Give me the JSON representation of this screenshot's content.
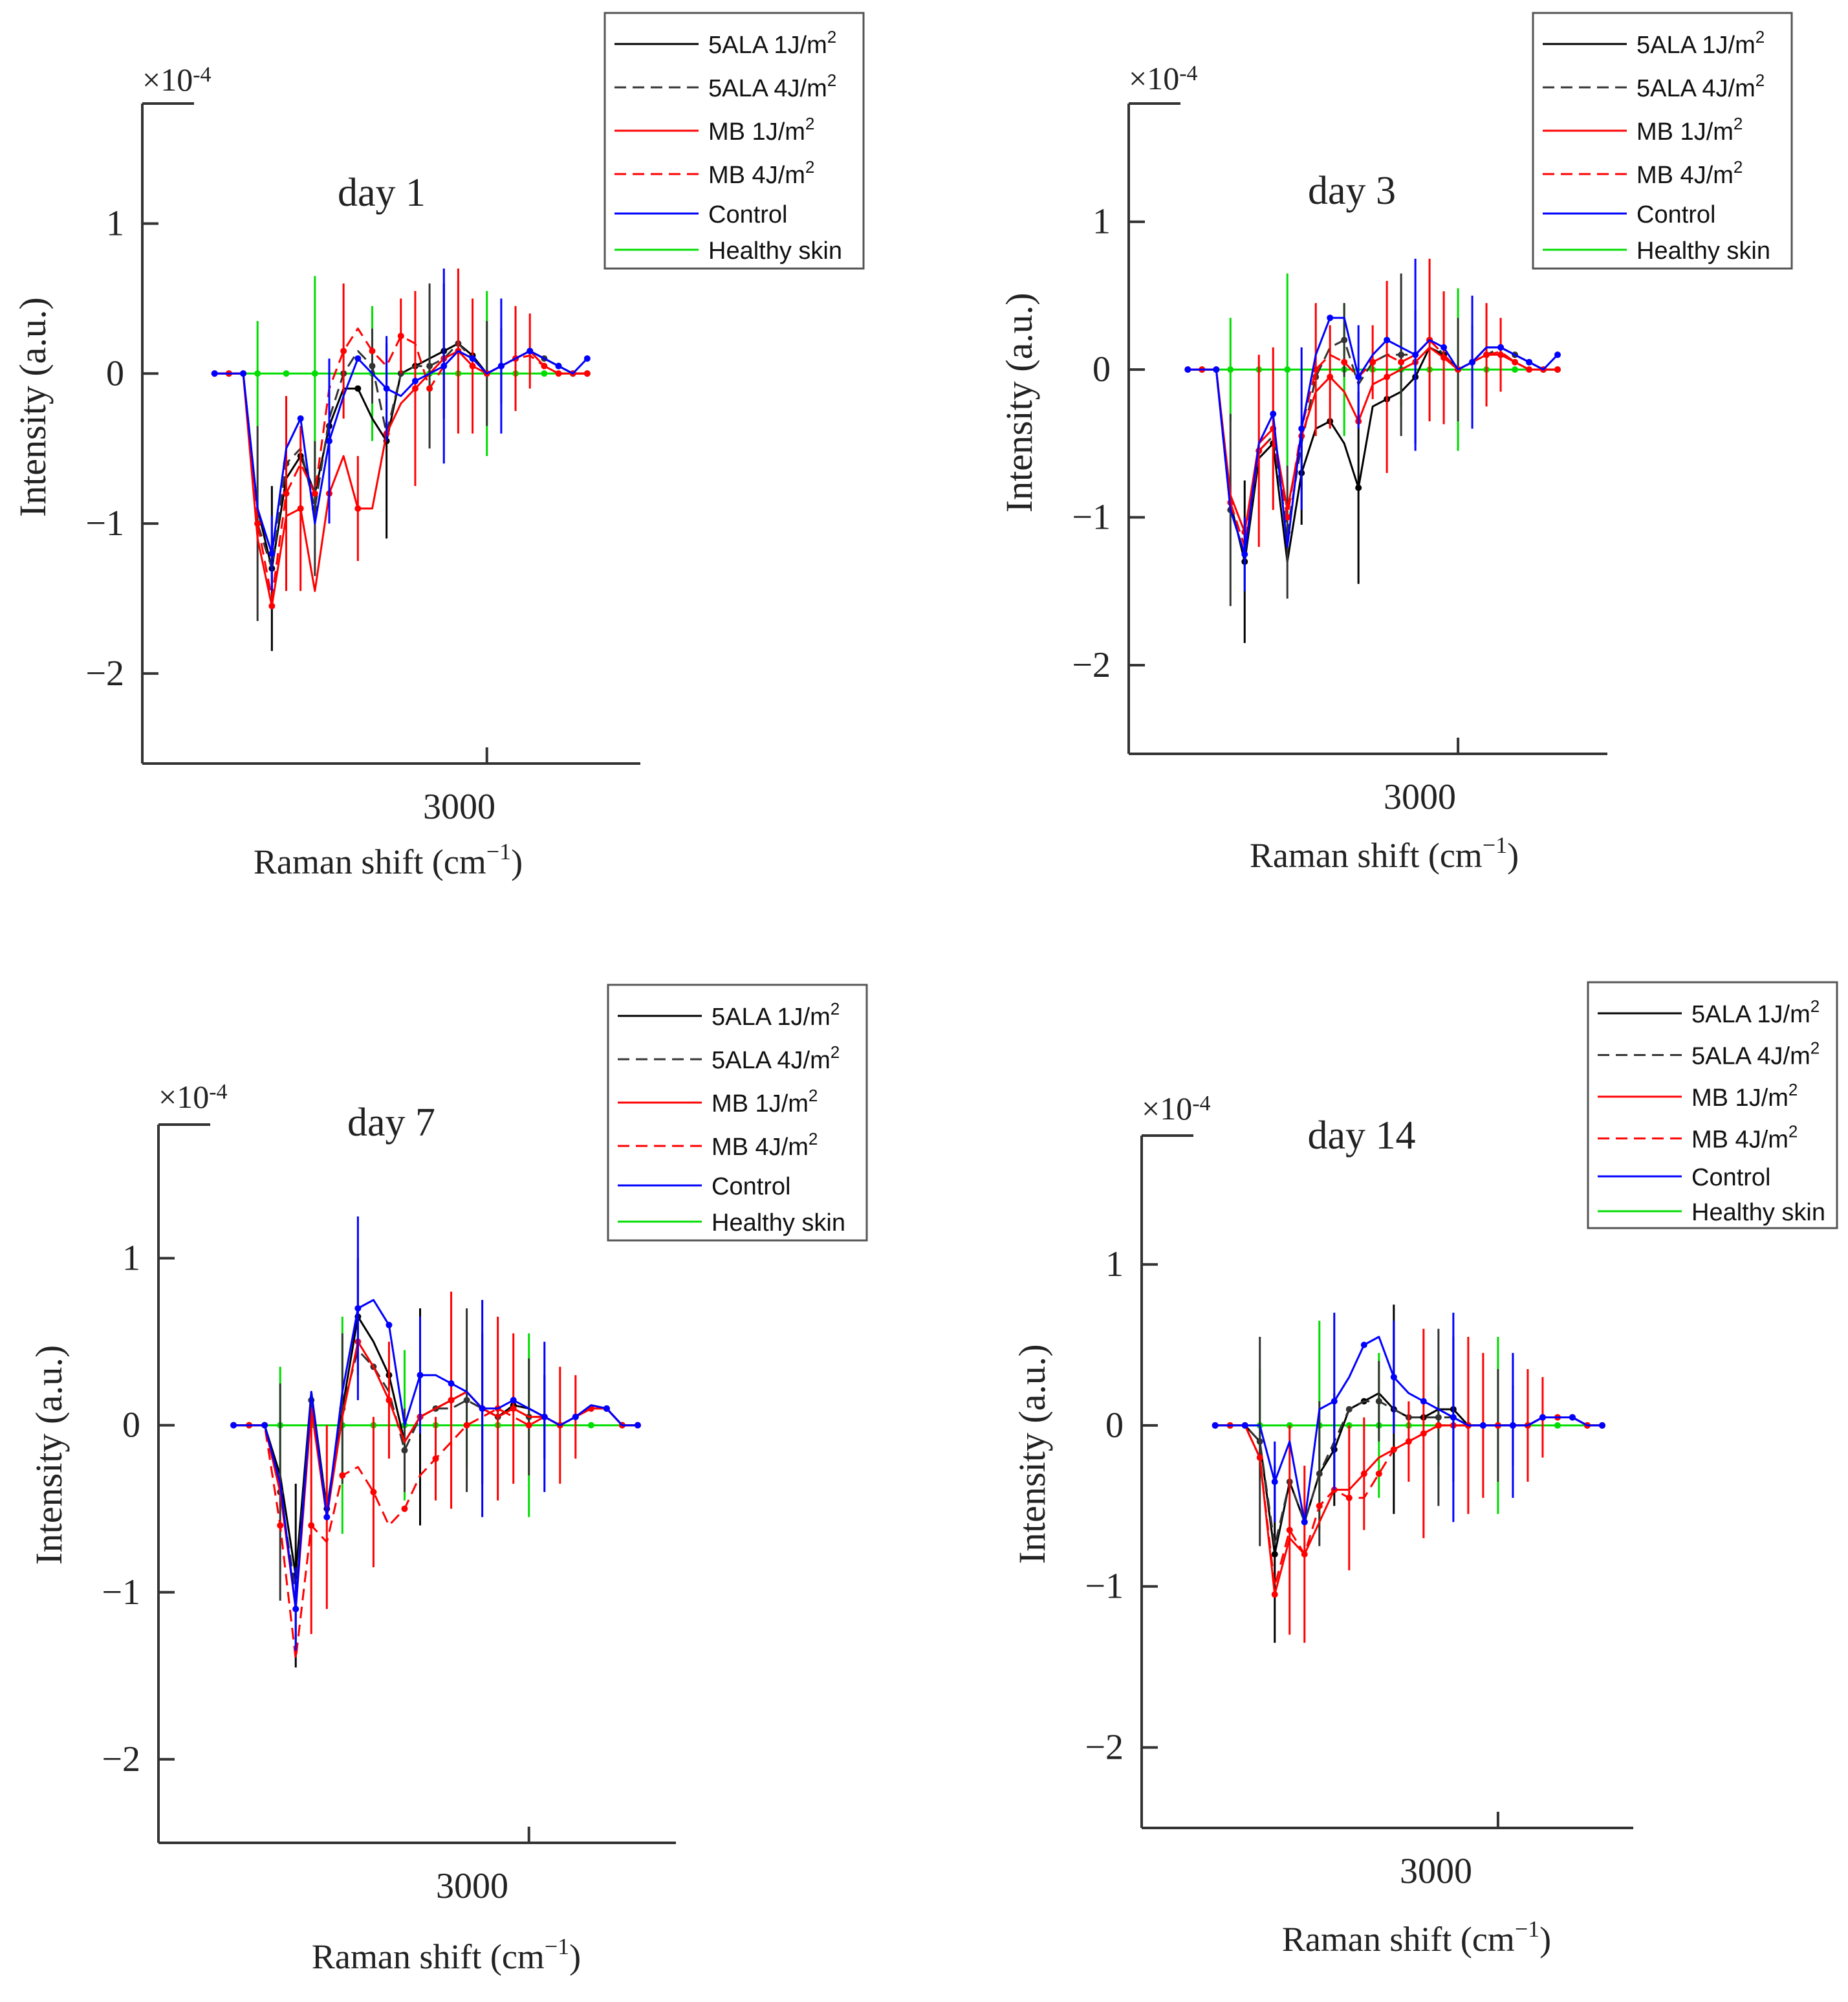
{
  "chart_data": [
    {
      "type": "line",
      "title": "day 1",
      "xlabel": "Raman shift (cm",
      "xlabel_exp": "−1",
      "xlabel_close": ")",
      "ylabel": "Intensity (a.u.)",
      "multiplier": "×10",
      "multiplier_exp": "-4",
      "xtick_label": "3000",
      "yticks": [
        -2,
        -1,
        0,
        1
      ],
      "ytick_labels": [
        "−2",
        "−1",
        "0",
        "1"
      ],
      "xlim": [
        2680,
        3120
      ],
      "ylim": [
        -2.6,
        1.8
      ],
      "x": [
        2715,
        2730,
        2745,
        2760,
        2775,
        2790,
        2805,
        2820,
        2835,
        2850,
        2865,
        2880,
        2895,
        2910,
        2925,
        2940,
        2955,
        2970,
        2985,
        3000,
        3015,
        3030,
        3045,
        3060,
        3075,
        3090,
        3105
      ],
      "series": [
        {
          "name": "5ALA 1J/m2",
          "values": [
            0,
            0,
            0,
            -0.9,
            -1.3,
            -0.7,
            -0.55,
            -0.8,
            -0.35,
            -0.1,
            -0.1,
            -0.3,
            -0.45,
            0.0,
            0.05,
            0.1,
            0.15,
            0.2,
            0.12,
            0.0,
            0.05,
            0.1,
            0.15,
            0.1,
            0.05,
            0.0,
            0.0
          ]
        },
        {
          "name": "5ALA 4J/m2",
          "values": [
            0,
            0,
            0,
            -1.0,
            -1.3,
            -0.6,
            -0.5,
            -0.9,
            -0.3,
            0.0,
            0.15,
            0.05,
            -0.4,
            0.0,
            0.05,
            0.05,
            0.1,
            0.2,
            0.1,
            0.0,
            0.05,
            0.1,
            0.15,
            0.1,
            0.05,
            0.0,
            0.0
          ]
        },
        {
          "name": "MB 1J/m2",
          "values": [
            0,
            0,
            0,
            -1.1,
            -1.55,
            -0.95,
            -0.9,
            -1.45,
            -0.8,
            -0.55,
            -0.9,
            -0.9,
            -0.4,
            -0.2,
            -0.1,
            0.0,
            0.1,
            0.15,
            0.05,
            0.0,
            0.05,
            0.1,
            0.15,
            0.05,
            0.0,
            0.0,
            0.0
          ]
        },
        {
          "name": "MB 4J/m2",
          "values": [
            0,
            0,
            0,
            -1.0,
            -1.5,
            -0.8,
            -0.6,
            -0.8,
            -0.1,
            0.15,
            0.3,
            0.15,
            0.05,
            0.25,
            0.2,
            -0.1,
            0.05,
            0.15,
            0.1,
            0.0,
            0.05,
            0.1,
            0.12,
            0.05,
            0.0,
            0.0,
            0.0
          ]
        },
        {
          "name": "Control",
          "values": [
            0,
            0,
            0,
            -0.9,
            -1.2,
            -0.5,
            -0.3,
            -1.0,
            -0.45,
            -0.15,
            0.1,
            0.0,
            -0.1,
            -0.15,
            -0.05,
            0.0,
            0.05,
            0.15,
            0.1,
            0.0,
            0.05,
            0.1,
            0.15,
            0.1,
            0.05,
            0.0,
            0.1
          ]
        },
        {
          "name": "Healthy skin",
          "values": [
            0,
            0,
            0,
            0,
            0,
            0,
            0,
            0,
            0,
            0,
            0,
            0,
            0,
            0,
            0,
            0,
            0,
            0,
            0,
            0,
            0,
            0,
            0,
            0,
            0,
            0,
            0
          ]
        }
      ]
    },
    {
      "type": "line",
      "title": "day 3",
      "xlabel": "Raman shift (cm",
      "xlabel_exp": "−1",
      "xlabel_close": ")",
      "ylabel": "Intensity (a.u.)",
      "multiplier": "×10",
      "multiplier_exp": "-4",
      "xtick_label": "3000",
      "yticks": [
        -2,
        -1,
        0,
        1
      ],
      "ytick_labels": [
        "−2",
        "−1",
        "0",
        "1"
      ],
      "xlim": [
        2680,
        3120
      ],
      "ylim": [
        -2.6,
        1.8
      ],
      "x": [
        2715,
        2730,
        2745,
        2760,
        2775,
        2790,
        2805,
        2820,
        2835,
        2850,
        2865,
        2880,
        2895,
        2910,
        2925,
        2940,
        2955,
        2970,
        2985,
        3000,
        3015,
        3030,
        3045,
        3060,
        3075,
        3090,
        3105
      ],
      "series": [
        {
          "name": "5ALA 1J/m2",
          "values": [
            0,
            0,
            0,
            -0.9,
            -1.3,
            -0.6,
            -0.5,
            -1.3,
            -0.7,
            -0.4,
            -0.35,
            -0.5,
            -0.8,
            -0.25,
            -0.2,
            -0.15,
            -0.05,
            0.15,
            0.1,
            0.0,
            0.05,
            0.15,
            0.15,
            0.1,
            0.05,
            0.0,
            0.0
          ]
        },
        {
          "name": "5ALA 4J/m2",
          "values": [
            0,
            0,
            0,
            -0.95,
            -1.25,
            -0.55,
            -0.45,
            -1.1,
            -0.5,
            -0.05,
            0.15,
            0.2,
            -0.1,
            0.05,
            0.1,
            0.1,
            0.1,
            0.2,
            0.1,
            0.0,
            0.05,
            0.1,
            0.15,
            0.1,
            0.05,
            0.0,
            0.0
          ]
        },
        {
          "name": "MB 1J/m2",
          "values": [
            0,
            0,
            0,
            -0.85,
            -1.1,
            -0.5,
            -0.4,
            -0.95,
            -0.45,
            -0.15,
            -0.05,
            -0.15,
            -0.35,
            -0.1,
            -0.05,
            0.0,
            0.05,
            0.15,
            0.08,
            0.0,
            0.05,
            0.1,
            0.1,
            0.05,
            0.0,
            0.0,
            0.0
          ]
        },
        {
          "name": "MB 4J/m2",
          "values": [
            0,
            0,
            0,
            -0.9,
            -1.2,
            -0.55,
            -0.45,
            -1.0,
            -0.4,
            0.0,
            0.1,
            0.05,
            -0.05,
            0.05,
            0.1,
            0.05,
            0.1,
            0.2,
            0.1,
            0.0,
            0.05,
            0.1,
            0.12,
            0.05,
            0.0,
            0.0,
            0.0
          ]
        },
        {
          "name": "Control",
          "values": [
            0,
            0,
            0,
            -0.95,
            -1.25,
            -0.5,
            -0.3,
            -1.2,
            -0.4,
            0.1,
            0.35,
            0.35,
            -0.05,
            0.1,
            0.2,
            0.15,
            0.1,
            0.2,
            0.15,
            0.0,
            0.05,
            0.15,
            0.15,
            0.1,
            0.05,
            0.0,
            0.1
          ]
        },
        {
          "name": "Healthy skin",
          "values": [
            0,
            0,
            0,
            0,
            0,
            0,
            0,
            0,
            0,
            0,
            0,
            0,
            0,
            0,
            0,
            0,
            0,
            0,
            0,
            0,
            0,
            0,
            0,
            0,
            0,
            0,
            0
          ]
        }
      ]
    },
    {
      "type": "line",
      "title": "day 7",
      "xlabel": "Raman shift (cm",
      "xlabel_exp": "−1",
      "xlabel_close": ")",
      "ylabel": "Intensity (a.u.)",
      "multiplier": "×10",
      "multiplier_exp": "-4",
      "xtick_label": "3000",
      "yticks": [
        -2,
        -1,
        0,
        1
      ],
      "ytick_labels": [
        "−2",
        "−1",
        "0",
        "1"
      ],
      "xlim": [
        2680,
        3120
      ],
      "ylim": [
        -2.5,
        1.8
      ],
      "x": [
        2715,
        2730,
        2745,
        2760,
        2775,
        2790,
        2805,
        2820,
        2835,
        2850,
        2865,
        2880,
        2895,
        2910,
        2925,
        2940,
        2955,
        2970,
        2985,
        3000,
        3015,
        3030,
        3045,
        3060,
        3075,
        3090,
        3105
      ],
      "series": [
        {
          "name": "5ALA 1J/m2",
          "values": [
            0,
            0,
            0,
            -0.3,
            -0.9,
            0.2,
            -0.5,
            0.1,
            0.65,
            0.5,
            0.3,
            -0.1,
            0.05,
            0.1,
            0.15,
            0.2,
            0.1,
            0.05,
            0.12,
            0.1,
            0.05,
            0.0,
            0.05,
            0.12,
            0.1,
            0.0,
            0.0
          ]
        },
        {
          "name": "5ALA 4J/m2",
          "values": [
            0,
            0,
            0,
            -0.4,
            -1.0,
            0.15,
            -0.5,
            0.1,
            0.45,
            0.35,
            0.2,
            -0.15,
            0.05,
            0.1,
            0.1,
            0.15,
            0.1,
            0.05,
            0.1,
            0.05,
            0.05,
            0.0,
            0.05,
            0.1,
            0.1,
            0.0,
            0.0
          ]
        },
        {
          "name": "MB 1J/m2",
          "values": [
            0,
            0,
            0,
            -0.4,
            -1.1,
            0.1,
            -0.55,
            0.05,
            0.5,
            0.35,
            0.15,
            -0.1,
            0.05,
            0.1,
            0.15,
            0.2,
            0.1,
            0.05,
            0.1,
            0.05,
            0.05,
            0.0,
            0.05,
            0.1,
            0.1,
            0.0,
            0.0
          ]
        },
        {
          "name": "MB 4J/m2",
          "values": [
            0,
            0,
            0,
            -0.6,
            -1.4,
            -0.6,
            -0.7,
            -0.3,
            -0.25,
            -0.4,
            -0.6,
            -0.5,
            -0.3,
            -0.2,
            -0.1,
            0.0,
            0.05,
            0.1,
            0.05,
            0.0,
            0.05,
            0.0,
            0.05,
            0.1,
            0.1,
            0.0,
            0.0
          ]
        },
        {
          "name": "Control",
          "values": [
            0,
            0,
            0,
            -0.35,
            -1.1,
            0.2,
            -0.55,
            0.2,
            0.7,
            0.75,
            0.6,
            0.0,
            0.3,
            0.3,
            0.25,
            0.2,
            0.1,
            0.1,
            0.15,
            0.1,
            0.05,
            0.0,
            0.05,
            0.12,
            0.1,
            0.0,
            0.0
          ]
        },
        {
          "name": "Healthy skin",
          "values": [
            0,
            0,
            0,
            0,
            0,
            0,
            0,
            0,
            0,
            0,
            0,
            0,
            0,
            0,
            0,
            0,
            0,
            0,
            0,
            0,
            0,
            0,
            0,
            0,
            0,
            0,
            0
          ]
        }
      ]
    },
    {
      "type": "line",
      "title": "day 14",
      "xlabel": "Raman shift (cm",
      "xlabel_exp": "−1",
      "xlabel_close": ")",
      "ylabel": "Intensity (a.u.)",
      "multiplier": "×10",
      "multiplier_exp": "-4",
      "xtick_label": "3000",
      "yticks": [
        -2,
        -1,
        0,
        1
      ],
      "ytick_labels": [
        "−2",
        "−1",
        "0",
        "1"
      ],
      "xlim": [
        2680,
        3120
      ],
      "ylim": [
        -2.5,
        1.8
      ],
      "x": [
        2715,
        2730,
        2745,
        2760,
        2775,
        2790,
        2805,
        2820,
        2835,
        2850,
        2865,
        2880,
        2895,
        2910,
        2925,
        2940,
        2955,
        2970,
        2985,
        3000,
        3015,
        3030,
        3045,
        3060,
        3075,
        3090,
        3105
      ],
      "series": [
        {
          "name": "5ALA 1J/m2",
          "values": [
            0,
            0,
            0,
            -0.1,
            -0.8,
            -0.35,
            -0.6,
            -0.3,
            -0.15,
            0.1,
            0.15,
            0.2,
            0.1,
            0.05,
            0.05,
            0.1,
            0.1,
            0.0,
            0.0,
            0.0,
            0.0,
            0.0,
            0.05,
            0.05,
            0.05,
            0.0,
            0.0
          ]
        },
        {
          "name": "5ALA 4J/m2",
          "values": [
            0,
            0,
            0,
            -0.1,
            -0.75,
            -0.35,
            -0.6,
            -0.3,
            -0.1,
            0.1,
            0.15,
            0.15,
            0.1,
            0.05,
            0.05,
            0.05,
            0.05,
            0.0,
            0.0,
            0.0,
            0.0,
            0.0,
            0.05,
            0.05,
            0.05,
            0.0,
            0.0
          ]
        },
        {
          "name": "MB 1J/m2",
          "values": [
            0,
            0,
            0,
            -0.2,
            -1.05,
            -0.7,
            -0.8,
            -0.6,
            -0.4,
            -0.4,
            -0.3,
            -0.2,
            -0.15,
            -0.1,
            -0.05,
            0.0,
            0.0,
            0.0,
            0.0,
            0.0,
            0.0,
            0.0,
            0.05,
            0.05,
            0.05,
            0.0,
            0.0
          ]
        },
        {
          "name": "MB 4J/m2",
          "values": [
            0,
            0,
            0,
            -0.2,
            -1.0,
            -0.65,
            -0.8,
            -0.5,
            -0.4,
            -0.45,
            -0.45,
            -0.3,
            -0.15,
            -0.1,
            -0.05,
            0.0,
            0.0,
            0.0,
            0.0,
            0.0,
            0.0,
            0.0,
            0.05,
            0.05,
            0.05,
            0.0,
            0.0
          ]
        },
        {
          "name": "Control",
          "values": [
            0,
            0,
            0,
            0.0,
            -0.35,
            -0.1,
            -0.6,
            0.1,
            0.15,
            0.3,
            0.5,
            0.55,
            0.3,
            0.2,
            0.15,
            0.1,
            0.05,
            0.0,
            0.0,
            0.0,
            0.0,
            0.0,
            0.05,
            0.05,
            0.05,
            0.0,
            0.0
          ]
        },
        {
          "name": "Healthy skin",
          "values": [
            0,
            0,
            0,
            0,
            0,
            0,
            0,
            0,
            0,
            0,
            0,
            0,
            0,
            0,
            0,
            0,
            0,
            0,
            0,
            0,
            0,
            0,
            0,
            0,
            0,
            0,
            0
          ]
        }
      ]
    }
  ],
  "legend_labels": [
    {
      "text": "5ALA 1J/m",
      "sup": "2"
    },
    {
      "text": "5ALA 4J/m",
      "sup": "2"
    },
    {
      "text": "MB 1J/m",
      "sup": "2"
    },
    {
      "text": "MB 4J/m",
      "sup": "2"
    },
    {
      "text": "Control",
      "sup": ""
    },
    {
      "text": "Healthy skin",
      "sup": ""
    }
  ],
  "series_styles": [
    {
      "color": "#000000",
      "dash": ""
    },
    {
      "color": "#333333",
      "dash": "18,10"
    },
    {
      "color": "#ff0000",
      "dash": ""
    },
    {
      "color": "#ff0000",
      "dash": "18,10"
    },
    {
      "color": "#0000ff",
      "dash": ""
    },
    {
      "color": "#00dd00",
      "dash": ""
    }
  ]
}
